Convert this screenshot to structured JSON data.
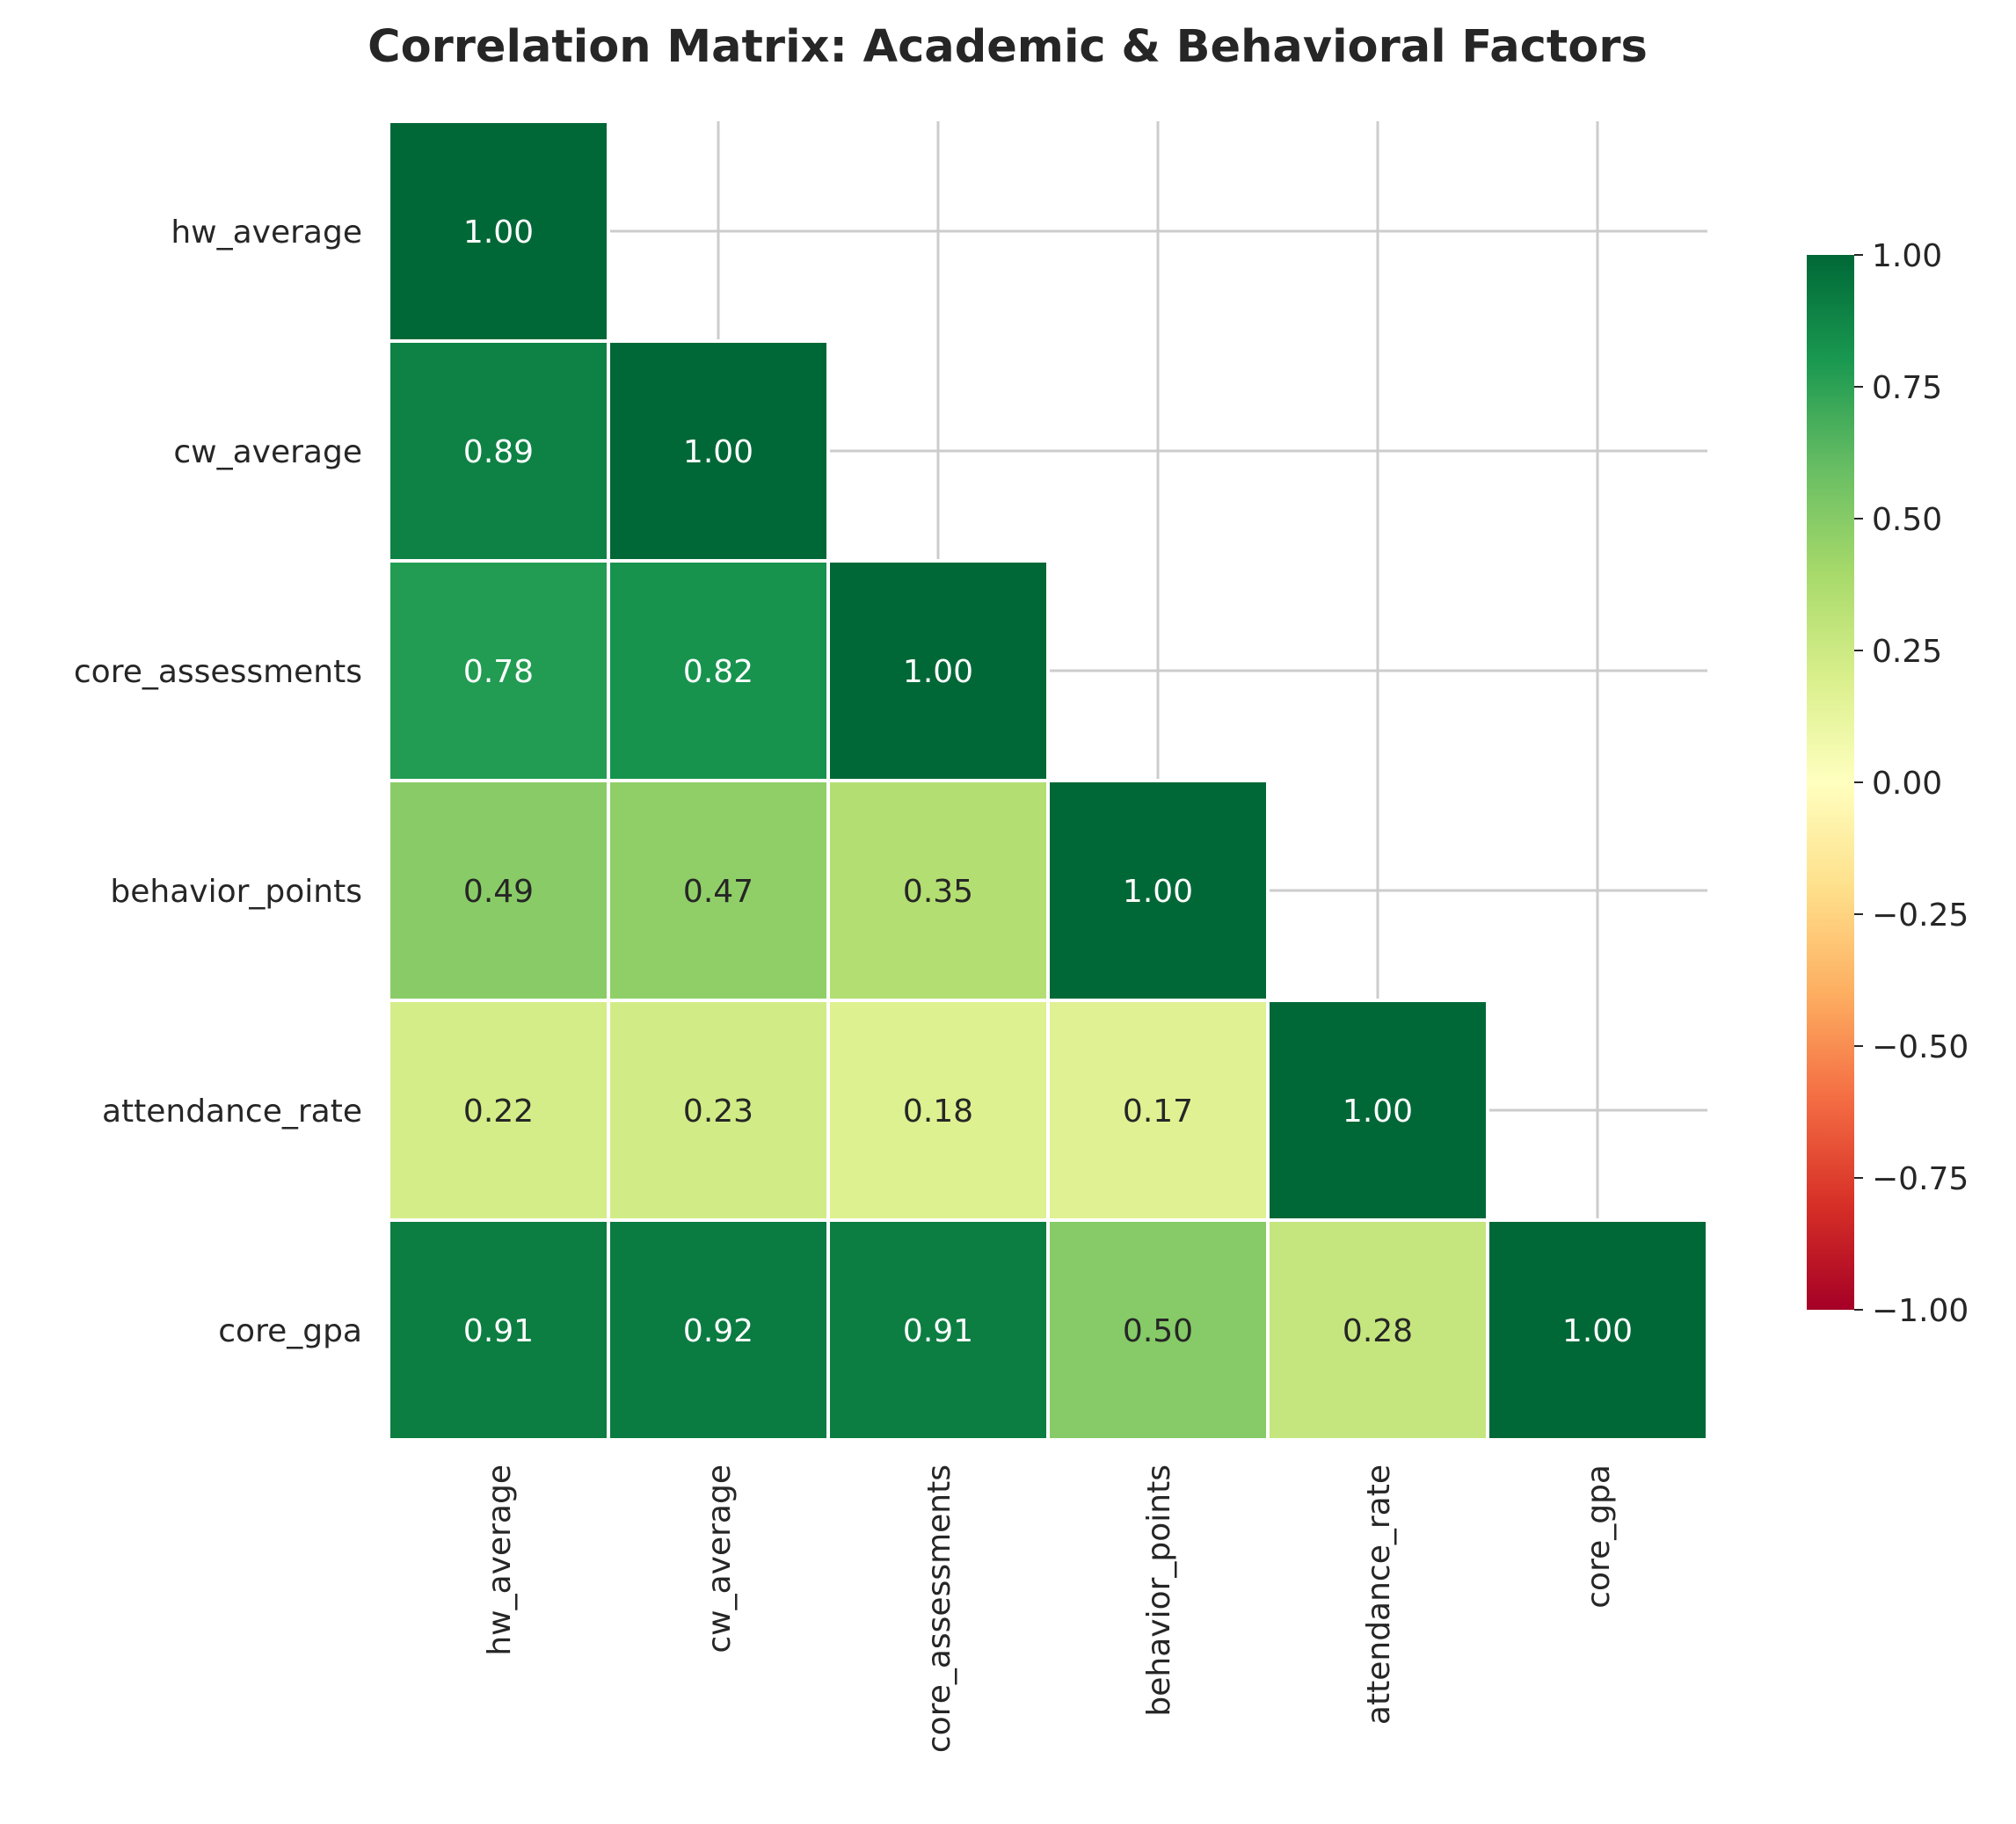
{
  "chart_data": {
    "type": "heatmap",
    "title": "Correlation Matrix: Academic & Behavioral Factors",
    "variables": [
      "hw_average",
      "cw_average",
      "core_assessments",
      "behavior_points",
      "attendance_rate",
      "core_gpa"
    ],
    "mask": "upper-triangle",
    "matrix": [
      [
        1.0,
        null,
        null,
        null,
        null,
        null
      ],
      [
        0.89,
        1.0,
        null,
        null,
        null,
        null
      ],
      [
        0.78,
        0.82,
        1.0,
        null,
        null,
        null
      ],
      [
        0.49,
        0.47,
        0.35,
        1.0,
        null,
        null
      ],
      [
        0.22,
        0.23,
        0.18,
        0.17,
        1.0,
        null
      ],
      [
        0.91,
        0.92,
        0.91,
        0.5,
        0.28,
        1.0
      ]
    ],
    "value_format": "0.00",
    "colormap": "RdYlGn",
    "vmin": -1,
    "vmax": 1,
    "colorbar_ticks": [
      "1.00",
      "0.75",
      "0.50",
      "0.25",
      "0.00",
      "−0.25",
      "−0.50",
      "−0.75",
      "−1.00"
    ],
    "colorbar_tick_values": [
      1.0,
      0.75,
      0.5,
      0.25,
      0.0,
      -0.25,
      -0.5,
      -0.75,
      -1.0
    ],
    "grid": true,
    "colors": {
      "background": "#ffffff",
      "grid": "#cccccc",
      "cell_border": "#ffffff",
      "text": "#262626",
      "light_annotation": "#ffffff",
      "dark_annotation": "#262626"
    }
  }
}
